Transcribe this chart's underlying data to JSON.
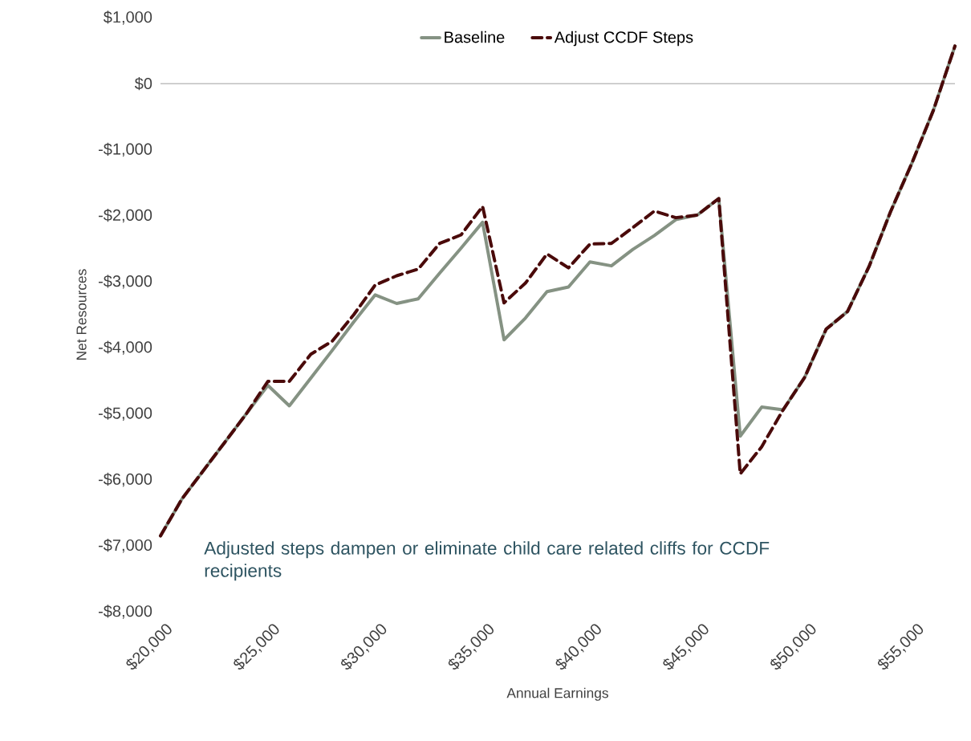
{
  "chart_data": {
    "type": "line",
    "xlabel": "Annual Earnings",
    "ylabel": "Net Resources",
    "x": [
      20000,
      21000,
      22000,
      23000,
      24000,
      25000,
      26000,
      27000,
      28000,
      29000,
      30000,
      31000,
      32000,
      33000,
      34000,
      35000,
      36000,
      37000,
      38000,
      39000,
      40000,
      41000,
      42000,
      43000,
      44000,
      45000,
      46000,
      47000,
      48000,
      49000,
      50000,
      51000,
      52000,
      53000,
      54000,
      55000,
      56000,
      57000
    ],
    "series": [
      {
        "name": "Baseline",
        "color": "#859283",
        "line_style": "solid",
        "values": [
          -6850,
          -6290,
          -5860,
          -5430,
          -5000,
          -4570,
          -4880,
          -4460,
          -4040,
          -3610,
          -3200,
          -3330,
          -3260,
          -2870,
          -2490,
          -2100,
          -3880,
          -3550,
          -3150,
          -3080,
          -2700,
          -2760,
          -2510,
          -2300,
          -2060,
          -1990,
          -1740,
          -5340,
          -4900,
          -4940,
          -4450,
          -3720,
          -3450,
          -2770,
          -1940,
          -1200,
          -400,
          570
        ]
      },
      {
        "name": "Adjust CCDF Steps",
        "color": "#4a0a0a",
        "line_style": "dashed",
        "values": [
          -6850,
          -6290,
          -5860,
          -5430,
          -5000,
          -4510,
          -4510,
          -4100,
          -3900,
          -3500,
          -3050,
          -2910,
          -2810,
          -2420,
          -2290,
          -1860,
          -3320,
          -3020,
          -2580,
          -2790,
          -2430,
          -2420,
          -2180,
          -1930,
          -2030,
          -1990,
          -1740,
          -5910,
          -5500,
          -4940,
          -4450,
          -3720,
          -3450,
          -2770,
          -1940,
          -1200,
          -400,
          570
        ]
      }
    ],
    "xlim": [
      20000,
      57000
    ],
    "xticks": [
      {
        "value": 20000,
        "label": "$20,000"
      },
      {
        "value": 25000,
        "label": "$25,000"
      },
      {
        "value": 30000,
        "label": "$30,000"
      },
      {
        "value": 35000,
        "label": "$35,000"
      },
      {
        "value": 40000,
        "label": "$40,000"
      },
      {
        "value": 45000,
        "label": "$45,000"
      },
      {
        "value": 50000,
        "label": "$50,000"
      },
      {
        "value": 55000,
        "label": "$55,000"
      }
    ],
    "ylim": [
      -8000,
      1000
    ],
    "yticks": [
      {
        "value": -8000,
        "label": "-$8,000"
      },
      {
        "value": -7000,
        "label": "-$7,000"
      },
      {
        "value": -6000,
        "label": "-$6,000"
      },
      {
        "value": -5000,
        "label": "-$5,000"
      },
      {
        "value": -4000,
        "label": "-$4,000"
      },
      {
        "value": -3000,
        "label": "-$3,000"
      },
      {
        "value": -2000,
        "label": "-$2,000"
      },
      {
        "value": -1000,
        "label": "-$1,000"
      },
      {
        "value": 0,
        "label": "$0"
      },
      {
        "value": 1000,
        "label": "$1,000"
      }
    ],
    "ref_lines": [
      {
        "axis": "y",
        "value": 0,
        "color": "#bfbfbf"
      }
    ],
    "annotations": [
      "Adjusted steps dampen or eliminate child care related cliffs for CCDF recipients"
    ],
    "legend": "top",
    "grid": false,
    "marker": "none"
  }
}
